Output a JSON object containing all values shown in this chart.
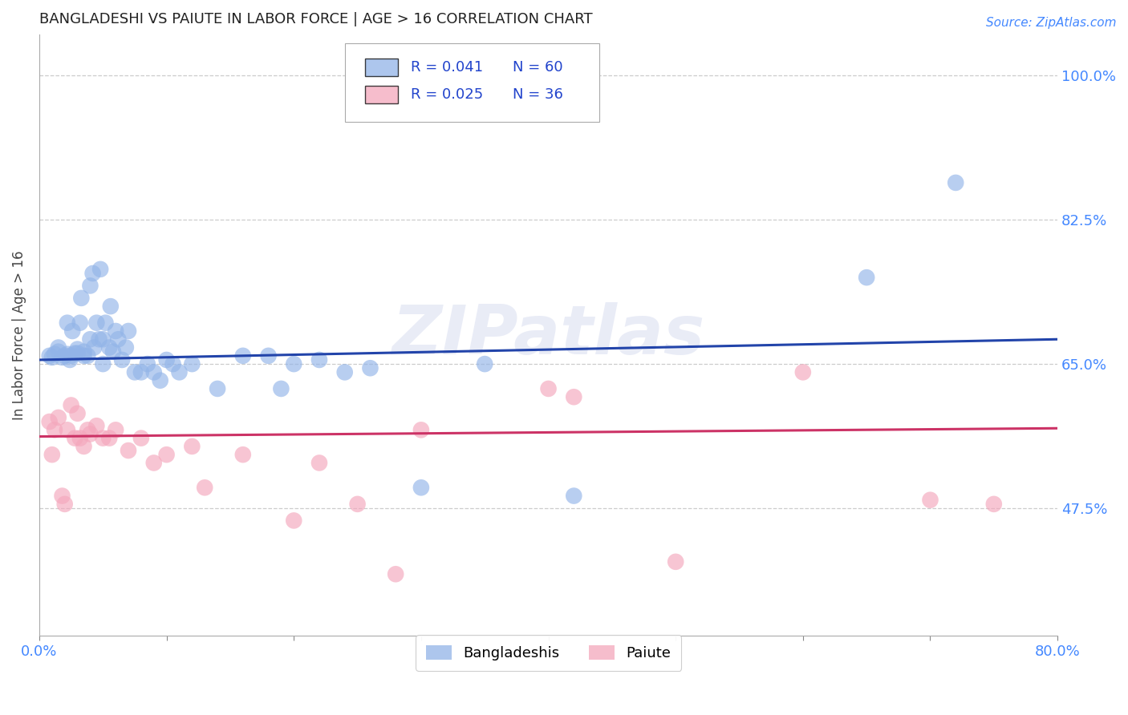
{
  "title": "BANGLADESHI VS PAIUTE IN LABOR FORCE | AGE > 16 CORRELATION CHART",
  "source": "Source: ZipAtlas.com",
  "ylabel": "In Labor Force | Age > 16",
  "xlim": [
    0.0,
    0.8
  ],
  "ylim": [
    0.32,
    1.05
  ],
  "xticks": [
    0.0,
    0.1,
    0.2,
    0.3,
    0.4,
    0.5,
    0.6,
    0.7,
    0.8
  ],
  "xticklabels": [
    "0.0%",
    "",
    "",
    "",
    "",
    "",
    "",
    "",
    "80.0%"
  ],
  "ytick_positions": [
    0.475,
    0.65,
    0.825,
    1.0
  ],
  "ytick_labels": [
    "47.5%",
    "65.0%",
    "82.5%",
    "100.0%"
  ],
  "grid_color": "#cccccc",
  "background_color": "#ffffff",
  "blue_color": "#92b4e8",
  "pink_color": "#f4a7bc",
  "line_blue": "#2244aa",
  "line_pink": "#cc3366",
  "watermark": "ZIPatlas",
  "blue_scatter_x": [
    0.008,
    0.01,
    0.012,
    0.015,
    0.015,
    0.018,
    0.02,
    0.022,
    0.022,
    0.024,
    0.025,
    0.026,
    0.028,
    0.03,
    0.03,
    0.032,
    0.033,
    0.035,
    0.035,
    0.038,
    0.04,
    0.04,
    0.042,
    0.043,
    0.045,
    0.047,
    0.048,
    0.05,
    0.05,
    0.052,
    0.055,
    0.056,
    0.058,
    0.06,
    0.062,
    0.065,
    0.068,
    0.07,
    0.075,
    0.08,
    0.085,
    0.09,
    0.095,
    0.1,
    0.105,
    0.11,
    0.12,
    0.14,
    0.16,
    0.18,
    0.19,
    0.2,
    0.22,
    0.24,
    0.26,
    0.3,
    0.35,
    0.42,
    0.65,
    0.72
  ],
  "blue_scatter_y": [
    0.66,
    0.658,
    0.662,
    0.665,
    0.67,
    0.658,
    0.66,
    0.662,
    0.7,
    0.655,
    0.66,
    0.69,
    0.663,
    0.663,
    0.668,
    0.7,
    0.73,
    0.66,
    0.665,
    0.66,
    0.68,
    0.745,
    0.76,
    0.67,
    0.7,
    0.68,
    0.765,
    0.65,
    0.68,
    0.7,
    0.67,
    0.72,
    0.665,
    0.69,
    0.68,
    0.655,
    0.67,
    0.69,
    0.64,
    0.64,
    0.65,
    0.64,
    0.63,
    0.655,
    0.65,
    0.64,
    0.65,
    0.62,
    0.66,
    0.66,
    0.62,
    0.65,
    0.655,
    0.64,
    0.645,
    0.5,
    0.65,
    0.49,
    0.755,
    0.87
  ],
  "pink_scatter_x": [
    0.008,
    0.01,
    0.012,
    0.015,
    0.018,
    0.02,
    0.022,
    0.025,
    0.028,
    0.03,
    0.032,
    0.035,
    0.038,
    0.04,
    0.045,
    0.05,
    0.055,
    0.06,
    0.07,
    0.08,
    0.09,
    0.1,
    0.12,
    0.13,
    0.16,
    0.2,
    0.22,
    0.25,
    0.28,
    0.3,
    0.4,
    0.42,
    0.5,
    0.6,
    0.7,
    0.75
  ],
  "pink_scatter_y": [
    0.58,
    0.54,
    0.57,
    0.585,
    0.49,
    0.48,
    0.57,
    0.6,
    0.56,
    0.59,
    0.56,
    0.55,
    0.57,
    0.565,
    0.575,
    0.56,
    0.56,
    0.57,
    0.545,
    0.56,
    0.53,
    0.54,
    0.55,
    0.5,
    0.54,
    0.46,
    0.53,
    0.48,
    0.395,
    0.57,
    0.62,
    0.61,
    0.41,
    0.64,
    0.485,
    0.48
  ],
  "blue_line_x": [
    0.0,
    0.8
  ],
  "blue_line_y": [
    0.655,
    0.68
  ],
  "pink_line_x": [
    0.0,
    0.8
  ],
  "pink_line_y": [
    0.562,
    0.572
  ]
}
